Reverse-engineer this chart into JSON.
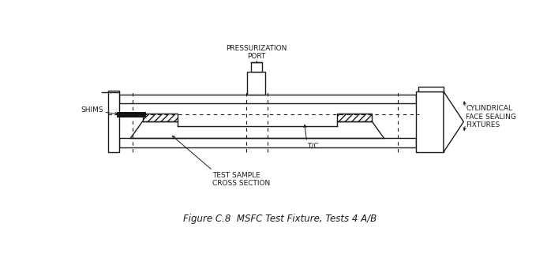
{
  "title": "Figure C.8  MSFC Test Fixture, Tests 4 A/B",
  "bg_color": "#ffffff",
  "line_color": "#1a1a1a",
  "lw": 1.0,
  "lw_thick": 1.8,
  "labels": {
    "pressurization_port": "PRESSURIZATION\nPORT",
    "shims": "SHIMS",
    "test_sample": "TEST SAMPLE\nCROSS SECTION",
    "tc": "T/C",
    "cylindrical": "CYLINDRICAL\nFACE SEALING\nFIXTURES"
  },
  "title_fontsize": 8.5,
  "label_fontsize": 6.5
}
